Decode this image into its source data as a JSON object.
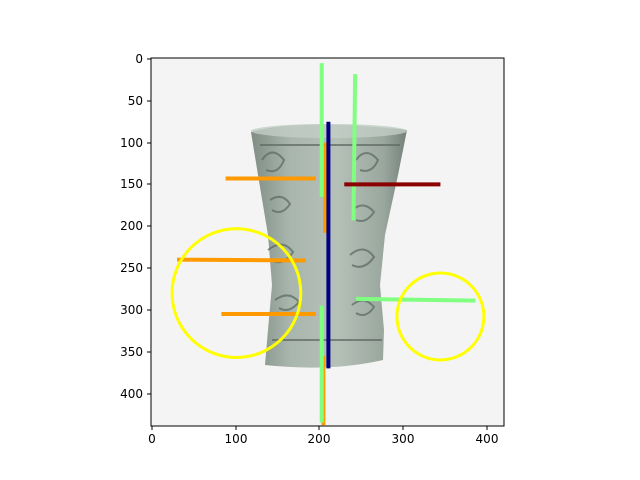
{
  "figure": {
    "x_ticks": [
      "0",
      "100",
      "200",
      "300",
      "400"
    ],
    "y_ticks": [
      "0",
      "50",
      "100",
      "150",
      "200",
      "250",
      "300",
      "350",
      "400"
    ]
  },
  "image_content": {
    "subject": "pale green-grey jade beaker with carved motifs on a white background",
    "colors": {
      "background": "#f3f4f3",
      "vessel_body": "#a8b5ac",
      "vessel_shadow": "#7f8d84",
      "carving": "#5f6b64"
    }
  },
  "overlays": {
    "line_colors": {
      "orange": "#ff9900",
      "light_green": "#80ff80",
      "navy": "#000080",
      "dark_red": "#8b0000",
      "yellow": "#ffff00"
    },
    "lines": [
      {
        "color": "orange",
        "from": [
          88,
          143
        ],
        "to": [
          196,
          143
        ]
      },
      {
        "color": "orange",
        "from": [
          30,
          240
        ],
        "to": [
          184,
          241
        ]
      },
      {
        "color": "orange",
        "from": [
          83,
          305
        ],
        "to": [
          196,
          305
        ]
      },
      {
        "color": "orange",
        "from": [
          208,
          100
        ],
        "to": [
          207,
          208
        ]
      },
      {
        "color": "orange",
        "from": [
          205,
          355
        ],
        "to": [
          205,
          438
        ]
      },
      {
        "color": "light_green",
        "from": [
          203,
          5
        ],
        "to": [
          203,
          165
        ]
      },
      {
        "color": "light_green",
        "from": [
          243,
          18
        ],
        "to": [
          241,
          193
        ]
      },
      {
        "color": "light_green",
        "from": [
          203,
          295
        ],
        "to": [
          203,
          435
        ]
      },
      {
        "color": "light_green",
        "from": [
          244,
          287
        ],
        "to": [
          387,
          289
        ]
      },
      {
        "color": "navy",
        "from": [
          211,
          75
        ],
        "to": [
          211,
          370
        ]
      },
      {
        "color": "dark_red",
        "from": [
          230,
          150
        ],
        "to": [
          345,
          150
        ]
      }
    ],
    "circles": [
      {
        "color": "yellow",
        "center": [
          101,
          280
        ],
        "radius": 77
      },
      {
        "color": "yellow",
        "center": [
          345,
          308
        ],
        "radius": 52
      }
    ]
  }
}
